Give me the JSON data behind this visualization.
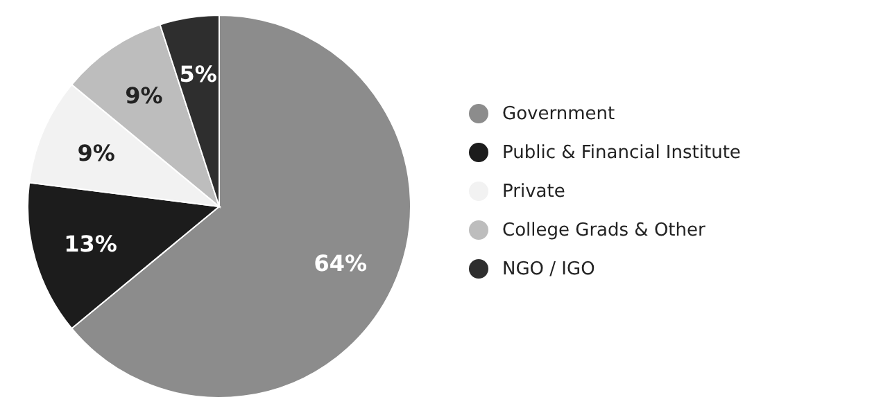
{
  "chart_data": {
    "type": "pie",
    "categories": [
      "Government",
      "Public & Financial Institute",
      "Private",
      "College Grads & Other",
      "NGO / IGO"
    ],
    "values": [
      64,
      13,
      9,
      9,
      5
    ],
    "value_labels": [
      "64%",
      "13%",
      "9%",
      "9%",
      "5%"
    ],
    "colors": [
      "#8c8c8c",
      "#1c1c1c",
      "#f2f2f2",
      "#bdbdbd",
      "#2e2e2e"
    ],
    "legend": "right"
  }
}
